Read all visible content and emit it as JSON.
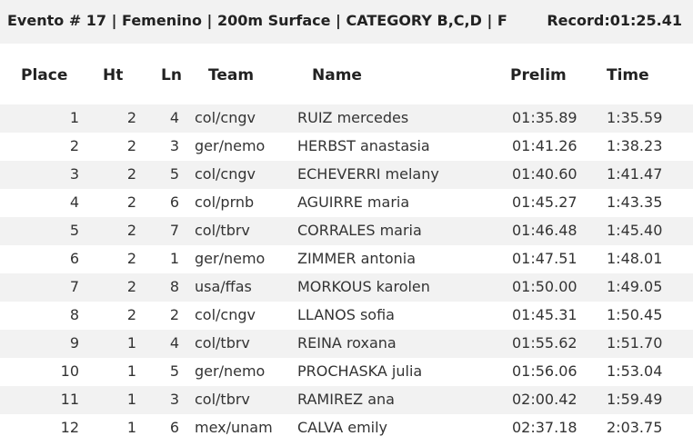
{
  "header": {
    "title": "Evento # 17 | Femenino | 200m Surface | CATEGORY B,C,D | F",
    "record": "Record:01:25.41"
  },
  "table": {
    "columns": [
      "Place",
      "Ht",
      "Ln",
      "Team",
      "Name",
      "Prelim",
      "Time"
    ],
    "rows": [
      [
        1,
        2,
        4,
        "col/cngv",
        "RUIZ mercedes",
        "01:35.89",
        "1:35.59"
      ],
      [
        2,
        2,
        3,
        "ger/nemo",
        "HERBST anastasia",
        "01:41.26",
        "1:38.23"
      ],
      [
        3,
        2,
        5,
        "col/cngv",
        "ECHEVERRI melany",
        "01:40.60",
        "1:41.47"
      ],
      [
        4,
        2,
        6,
        "col/prnb",
        "AGUIRRE maria",
        "01:45.27",
        "1:43.35"
      ],
      [
        5,
        2,
        7,
        "col/tbrv",
        "CORRALES maria",
        "01:46.48",
        "1:45.40"
      ],
      [
        6,
        2,
        1,
        "ger/nemo",
        "ZIMMER antonia",
        "01:47.51",
        "1:48.01"
      ],
      [
        7,
        2,
        8,
        "usa/ffas",
        "MORKOUS karolen",
        "01:50.00",
        "1:49.05"
      ],
      [
        8,
        2,
        2,
        "col/cngv",
        "LLANOS sofia",
        "01:45.31",
        "1:50.45"
      ],
      [
        9,
        1,
        4,
        "col/tbrv",
        "REINA roxana",
        "01:55.62",
        "1:51.70"
      ],
      [
        10,
        1,
        5,
        "ger/nemo",
        "PROCHASKA julia",
        "01:56.06",
        "1:53.04"
      ],
      [
        11,
        1,
        3,
        "col/tbrv",
        "RAMIREZ ana",
        "02:00.42",
        "1:59.49"
      ],
      [
        12,
        1,
        6,
        "mex/unam",
        "CALVA emily",
        "02:37.18",
        "2:03.75"
      ]
    ]
  }
}
